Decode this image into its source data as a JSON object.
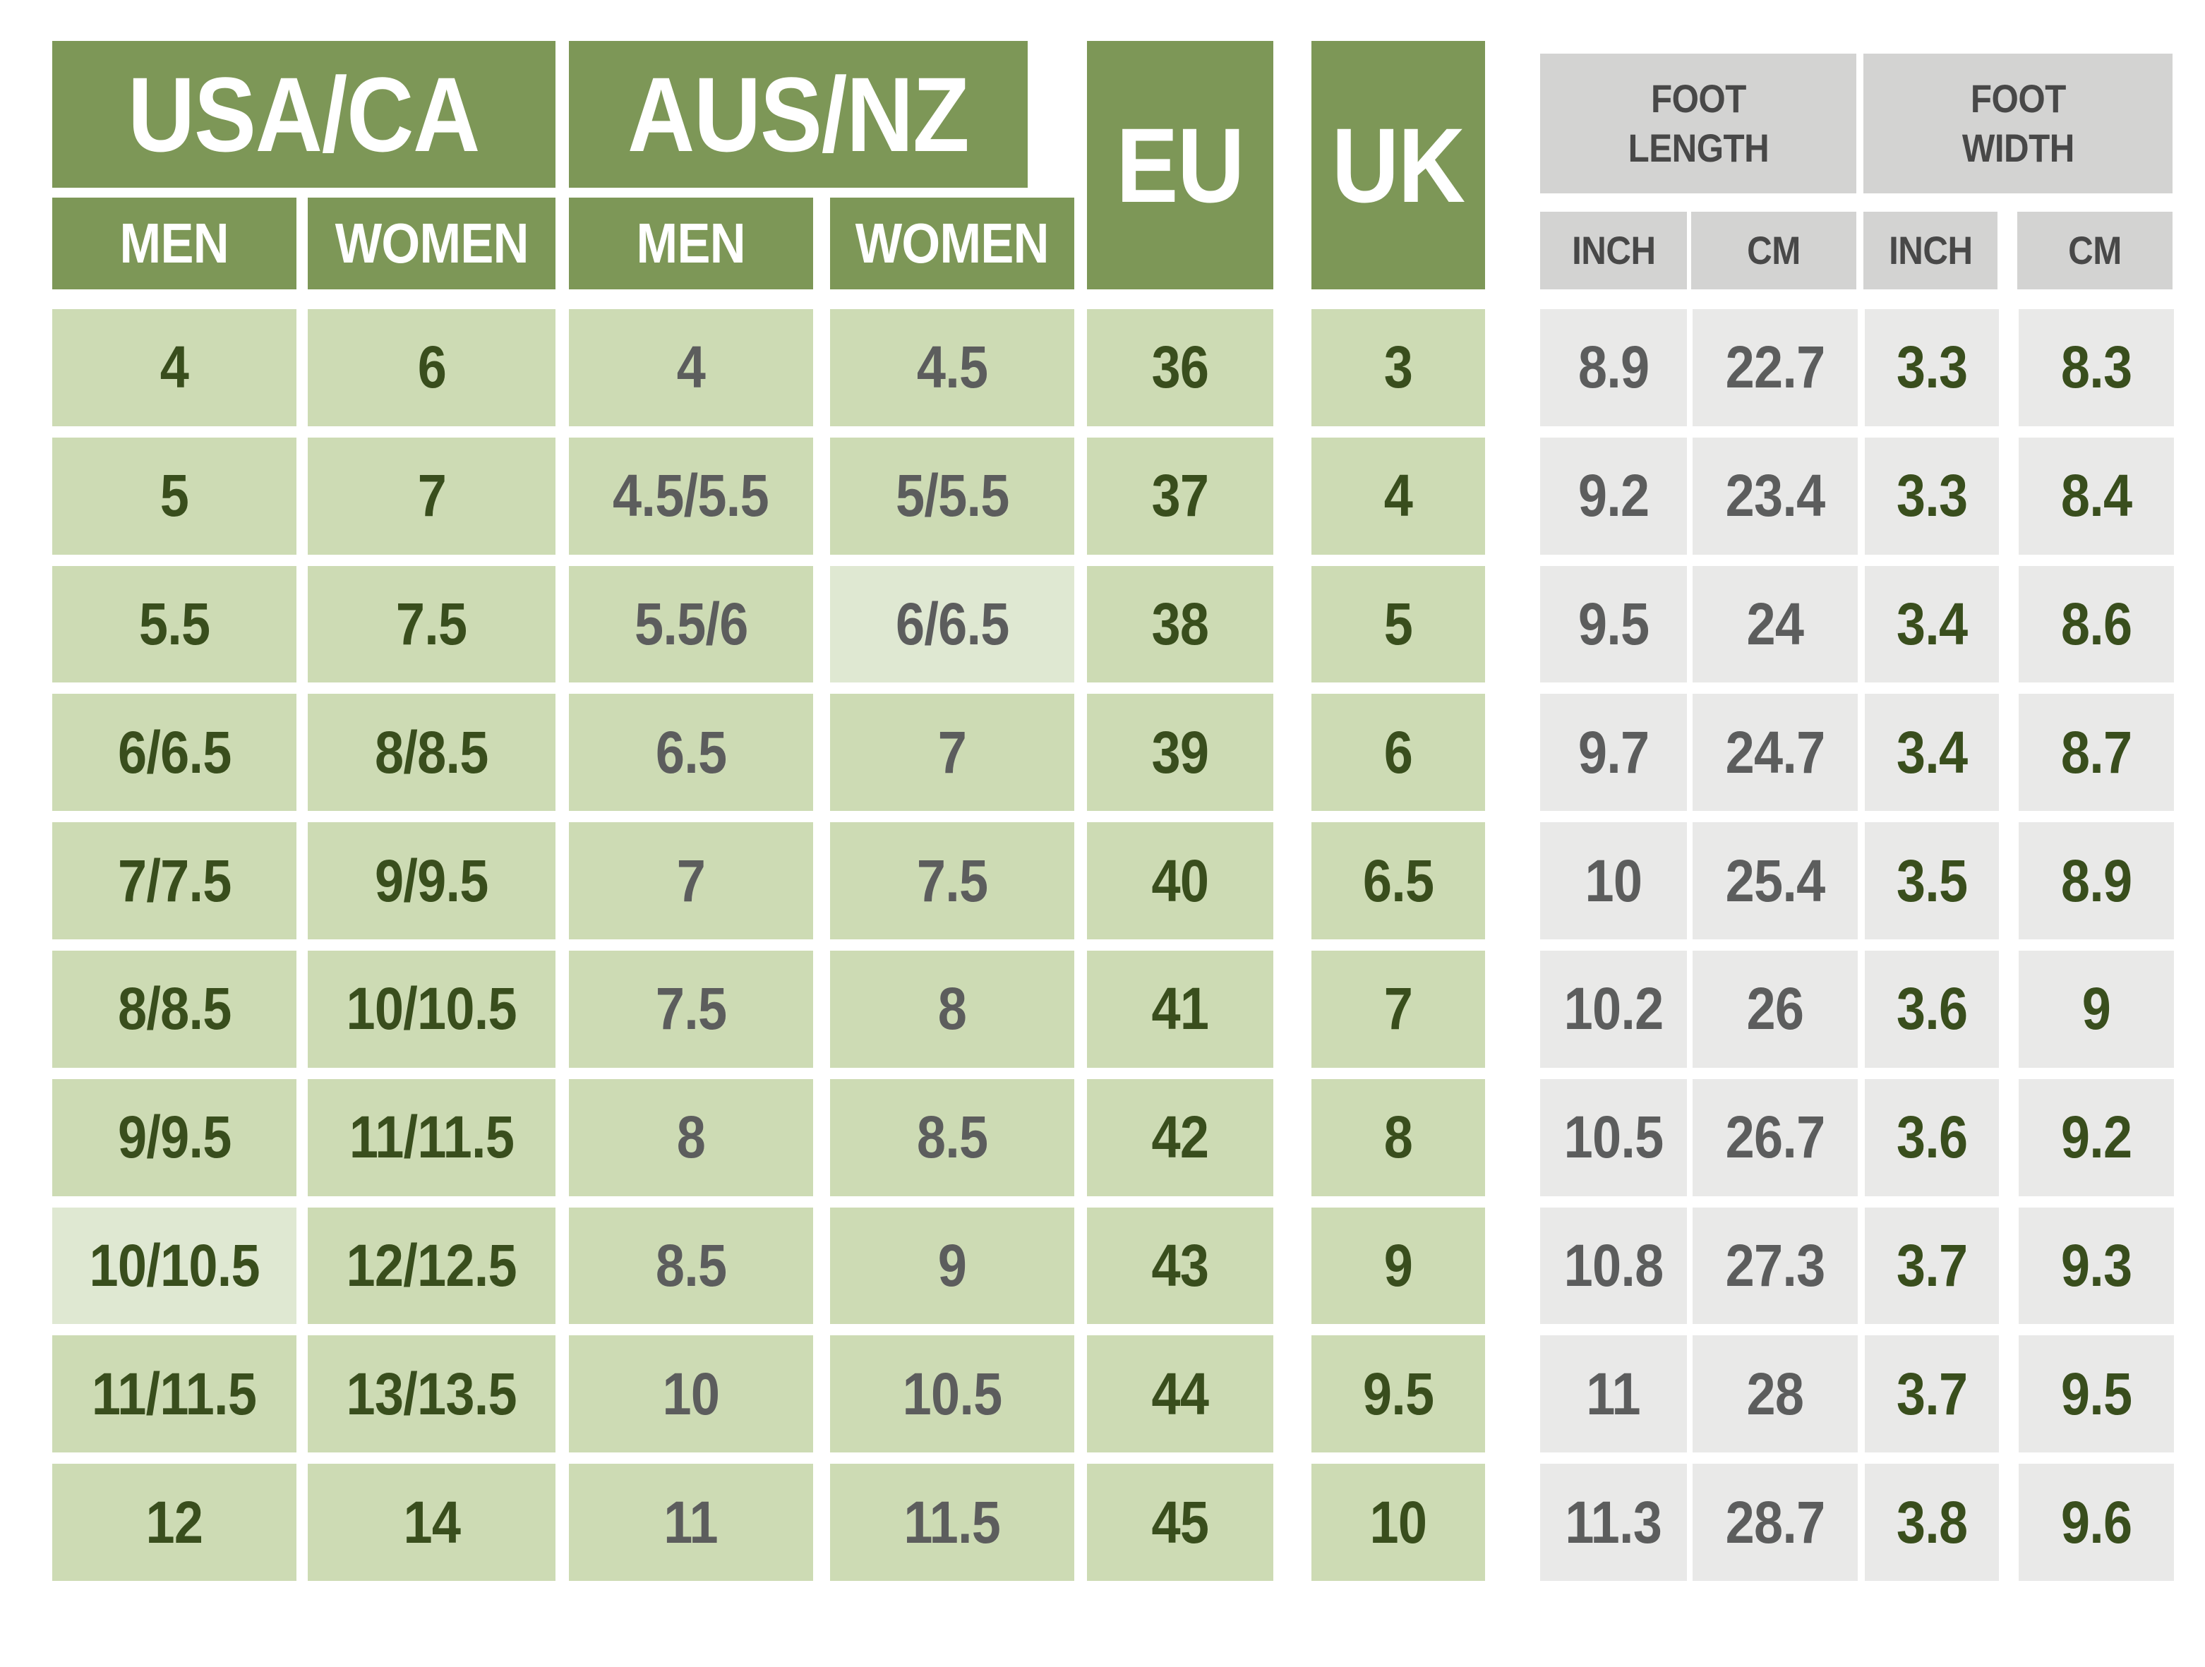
{
  "palette": {
    "header_green": "#7d9757",
    "cell_green": "#cddbb4",
    "cell_green_light": "#dfe8d2",
    "header_gray": "#d3d3d2",
    "cell_gray": "#e9e9e8",
    "text_dark_green": "#394e1d",
    "text_gray": "#5c5d5d",
    "text_header_gray": "#484848",
    "text_white": "#ffffff",
    "background": "#ffffff"
  },
  "header": {
    "usa_ca": "USA/CA",
    "aus_nz": "AUS/NZ",
    "eu": "EU",
    "uk": "UK",
    "foot_length": "FOOT\nLENGTH",
    "foot_width": "FOOT\nWIDTH",
    "usa_men": "MEN",
    "usa_women": "WOMEN",
    "aus_men": "MEN",
    "aus_women": "WOMEN",
    "foot_length_inch": "INCH",
    "foot_length_cm": "CM",
    "foot_width_inch": "INCH",
    "foot_width_cm": "CM"
  },
  "chart_data": {
    "type": "table",
    "title": "Shoe size conversion chart",
    "column_groups": [
      {
        "label": "USA/CA",
        "columns": [
          "MEN",
          "WOMEN"
        ]
      },
      {
        "label": "AUS/NZ",
        "columns": [
          "MEN",
          "WOMEN"
        ]
      },
      {
        "label": "EU",
        "columns": []
      },
      {
        "label": "UK",
        "columns": []
      },
      {
        "label": "FOOT LENGTH",
        "columns": [
          "INCH",
          "CM"
        ]
      },
      {
        "label": "FOOT WIDTH",
        "columns": [
          "INCH",
          "CM"
        ]
      }
    ],
    "columns": [
      {
        "key": "usa-ca-men",
        "bg": "green",
        "fg": "dark-green"
      },
      {
        "key": "usa-ca-women",
        "bg": "green",
        "fg": "dark-green"
      },
      {
        "key": "aus-nz-men",
        "bg": "green",
        "fg": "gray"
      },
      {
        "key": "aus-nz-women",
        "bg": "green",
        "fg": "gray"
      },
      {
        "key": "eu",
        "bg": "green",
        "fg": "dark-green"
      },
      {
        "key": "uk",
        "bg": "green",
        "fg": "dark-green"
      },
      {
        "key": "foot-length-inch",
        "bg": "gray",
        "fg": "gray"
      },
      {
        "key": "foot-length-cm",
        "bg": "gray",
        "fg": "gray"
      },
      {
        "key": "foot-width-inch",
        "bg": "gray",
        "fg": "dark-green"
      },
      {
        "key": "foot-width-cm",
        "bg": "gray",
        "fg": "dark-green"
      }
    ],
    "rows": [
      [
        "4",
        "6",
        "4",
        "4.5",
        "36",
        "3",
        "8.9",
        "22.7",
        "3.3",
        "8.3"
      ],
      [
        "5",
        "7",
        "4.5/5.5",
        "5/5.5",
        "37",
        "4",
        "9.2",
        "23.4",
        "3.3",
        "8.4"
      ],
      [
        "5.5",
        "7.5",
        "5.5/6",
        "6/6.5",
        "38",
        "5",
        "9.5",
        "24",
        "3.4",
        "8.6"
      ],
      [
        "6/6.5",
        "8/8.5",
        "6.5",
        "7",
        "39",
        "6",
        "9.7",
        "24.7",
        "3.4",
        "8.7"
      ],
      [
        "7/7.5",
        "9/9.5",
        "7",
        "7.5",
        "40",
        "6.5",
        "10",
        "25.4",
        "3.5",
        "8.9"
      ],
      [
        "8/8.5",
        "10/10.5",
        "7.5",
        "8",
        "41",
        "7",
        "10.2",
        "26",
        "3.6",
        "9"
      ],
      [
        "9/9.5",
        "11/11.5",
        "8",
        "8.5",
        "42",
        "8",
        "10.5",
        "26.7",
        "3.6",
        "9.2"
      ],
      [
        "10/10.5",
        "12/12.5",
        "8.5",
        "9",
        "43",
        "9",
        "10.8",
        "27.3",
        "3.7",
        "9.3"
      ],
      [
        "11/11.5",
        "13/13.5",
        "10",
        "10.5",
        "44",
        "9.5",
        "11",
        "28",
        "3.7",
        "9.5"
      ],
      [
        "12",
        "14",
        "11",
        "11.5",
        "45",
        "10",
        "11.3",
        "28.7",
        "3.8",
        "9.6"
      ]
    ],
    "muted_cells": [
      {
        "row": 2,
        "col": 3
      },
      {
        "row": 7,
        "col": 0
      }
    ]
  }
}
